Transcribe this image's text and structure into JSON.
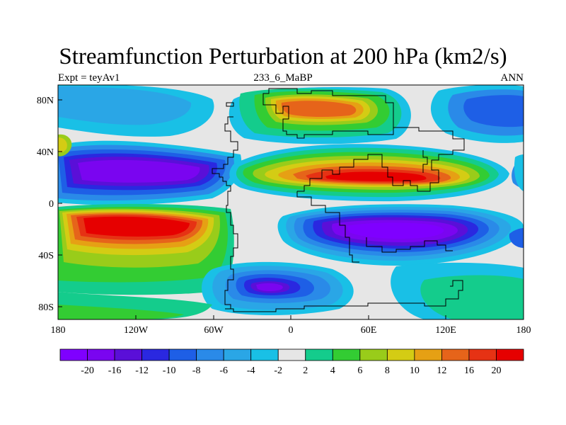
{
  "title": "Streamfunction Perturbation at 200 hPa (km2/s)",
  "subtitle_left": "Expt = teyAv1",
  "subtitle_center": "233_6_MaBP",
  "subtitle_right": "ANN",
  "chart_data": {
    "type": "heatmap",
    "x_tick_labels": [
      "180",
      "120W",
      "60W",
      "0",
      "60E",
      "120E",
      "180"
    ],
    "y_tick_labels": [
      "80N",
      "40N",
      "0",
      "40S",
      "80S"
    ],
    "xlim": [
      -180,
      180
    ],
    "ylim": [
      -90,
      90
    ],
    "colorbar": {
      "labels": [
        "-20",
        "-16",
        "-12",
        "-10",
        "-8",
        "-6",
        "-4",
        "-2",
        "2",
        "4",
        "6",
        "8",
        "10",
        "12",
        "16",
        "20"
      ],
      "colors": [
        "#7f00ff",
        "#7a05f0",
        "#5a0fd8",
        "#2a28e0",
        "#1e5fe6",
        "#2a8ae8",
        "#2aa6e6",
        "#19c0e6",
        "#e6e6e6",
        "#14cc8c",
        "#33cc33",
        "#99cc1a",
        "#d4cc14",
        "#e6a014",
        "#e6641a",
        "#e63214",
        "#e60000"
      ]
    },
    "features": [
      {
        "label": "negative center",
        "lon": -112,
        "lat": 22,
        "value": -20
      },
      {
        "label": "positive center",
        "lon": -105,
        "lat": -18,
        "value": 20
      },
      {
        "label": "positive center",
        "lon": 75,
        "lat": 22,
        "value": 20
      },
      {
        "label": "negative center",
        "lon": 75,
        "lat": -25,
        "value": -20
      },
      {
        "label": "positive center",
        "lon": 30,
        "lat": 68,
        "value": 14
      },
      {
        "label": "negative center",
        "lon": -20,
        "lat": -65,
        "value": -16
      }
    ]
  }
}
